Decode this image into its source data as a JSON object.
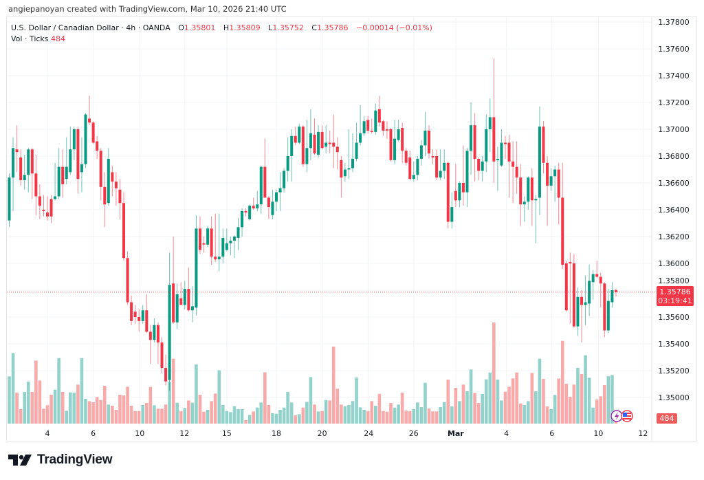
{
  "credit": "angiepanoyan created with TradingView.com, Mar 10, 2026 21:40 UTC",
  "legend": {
    "symbol": "U.S. Dollar / Canadian Dollar · 4h · OANDA",
    "o_label": "O",
    "o_value": "1.35801",
    "h_label": "H",
    "h_value": "1.35809",
    "l_label": "L",
    "l_value": "1.35752",
    "c_label": "C",
    "c_value": "1.35786",
    "change": "−0.00014 (−0.01%)",
    "vol_label": "Vol · Ticks",
    "vol_value": "484"
  },
  "price_badge": {
    "price": "1.35786",
    "countdown": "03:19:41"
  },
  "volume_badge": "484",
  "logo_text": "TradingView",
  "icons": [
    "lightning-icon",
    "us-flag-icon"
  ],
  "colors": {
    "up": "#089981",
    "down": "#f23645",
    "up_vol": "#92d2cb",
    "down_vol": "#f8a9a9",
    "grid": "#f2f3f5"
  },
  "chart_data": {
    "type": "candlestick",
    "title": "U.S. Dollar / Canadian Dollar · 4h · OANDA",
    "ylim": [
      1.3485,
      1.3796
    ],
    "y_ticks": [
      "1.37800",
      "1.37600",
      "1.37400",
      "1.37200",
      "1.37000",
      "1.36800",
      "1.36600",
      "1.36400",
      "1.36200",
      "1.36000",
      "1.35800",
      "1.35600",
      "1.35400",
      "1.35200",
      "1.35000"
    ],
    "time_ticks": [
      {
        "label": "4",
        "index": 10
      },
      {
        "label": "6",
        "index": 22
      },
      {
        "label": "10",
        "index": 34.2
      },
      {
        "label": "12",
        "index": 45.9
      },
      {
        "label": "15",
        "index": 57
      },
      {
        "label": "18",
        "index": 70
      },
      {
        "label": "20",
        "index": 82
      },
      {
        "label": "24",
        "index": 94.2
      },
      {
        "label": "26",
        "index": 106
      },
      {
        "label": "Mar",
        "index": 117,
        "bold": true
      },
      {
        "label": "4",
        "index": 130.3
      },
      {
        "label": "6",
        "index": 142.2
      },
      {
        "label": "10",
        "index": 154.4
      },
      {
        "label": "12",
        "index": 166.1
      }
    ],
    "last_price": 1.35786,
    "ohlc": [
      [
        1.3632,
        1.3667,
        1.3627,
        1.3664
      ],
      [
        1.3664,
        1.3694,
        1.3639,
        1.3686
      ],
      [
        1.3685,
        1.3703,
        1.3668,
        1.3683
      ],
      [
        1.3679,
        1.3685,
        1.3658,
        1.3662
      ],
      [
        1.3662,
        1.3681,
        1.3655,
        1.3666
      ],
      [
        1.3666,
        1.3686,
        1.3653,
        1.3685
      ],
      [
        1.3685,
        1.3686,
        1.3648,
        1.3667
      ],
      [
        1.3667,
        1.3681,
        1.3636,
        1.365
      ],
      [
        1.365,
        1.3659,
        1.3633,
        1.3643
      ],
      [
        1.364,
        1.3651,
        1.3635,
        1.3639
      ],
      [
        1.3638,
        1.365,
        1.3632,
        1.3635
      ],
      [
        1.3648,
        1.3651,
        1.363,
        1.3635
      ],
      [
        1.3648,
        1.3675,
        1.3647,
        1.365
      ],
      [
        1.365,
        1.3686,
        1.3648,
        1.3672
      ],
      [
        1.3672,
        1.3685,
        1.3649,
        1.3659
      ],
      [
        1.3663,
        1.3694,
        1.3659,
        1.3672
      ],
      [
        1.3668,
        1.3702,
        1.3666,
        1.3685
      ],
      [
        1.3685,
        1.3702,
        1.3677,
        1.37
      ],
      [
        1.37,
        1.3702,
        1.3652,
        1.3663
      ],
      [
        1.3668,
        1.3694,
        1.3653,
        1.3674
      ],
      [
        1.3674,
        1.3712,
        1.3671,
        1.3711
      ],
      [
        1.3708,
        1.3725,
        1.3703,
        1.3705
      ],
      [
        1.3705,
        1.3706,
        1.3689,
        1.369
      ],
      [
        1.3691,
        1.3695,
        1.3678,
        1.3684
      ],
      [
        1.3684,
        1.3686,
        1.3647,
        1.3657
      ],
      [
        1.3657,
        1.3668,
        1.3627,
        1.3644
      ],
      [
        1.3645,
        1.3686,
        1.3643,
        1.3678
      ],
      [
        1.3668,
        1.3673,
        1.365,
        1.3661
      ],
      [
        1.3661,
        1.3668,
        1.3643,
        1.3656
      ],
      [
        1.3655,
        1.3663,
        1.3633,
        1.3645
      ],
      [
        1.3645,
        1.3653,
        1.3602,
        1.3604
      ],
      [
        1.3604,
        1.3609,
        1.3569,
        1.3571
      ],
      [
        1.3571,
        1.3576,
        1.3554,
        1.3557
      ],
      [
        1.3564,
        1.3569,
        1.3555,
        1.356
      ],
      [
        1.356,
        1.3566,
        1.3549,
        1.3557
      ],
      [
        1.3557,
        1.3569,
        1.3555,
        1.3565
      ],
      [
        1.3565,
        1.3577,
        1.3548,
        1.3549
      ],
      [
        1.3549,
        1.3554,
        1.3525,
        1.3543
      ],
      [
        1.3543,
        1.3559,
        1.3541,
        1.3554
      ],
      [
        1.3554,
        1.3556,
        1.3525,
        1.3541
      ],
      [
        1.3541,
        1.3545,
        1.3518,
        1.3522
      ],
      [
        1.3522,
        1.3532,
        1.3509,
        1.3512
      ],
      [
        1.3513,
        1.3608,
        1.3505,
        1.3584
      ],
      [
        1.3585,
        1.362,
        1.3555,
        1.3556
      ],
      [
        1.3556,
        1.3585,
        1.3551,
        1.3577
      ],
      [
        1.3574,
        1.3586,
        1.3569,
        1.3569
      ],
      [
        1.3569,
        1.3587,
        1.3566,
        1.3581
      ],
      [
        1.3581,
        1.3597,
        1.3564,
        1.3565
      ],
      [
        1.3565,
        1.3583,
        1.3556,
        1.3568
      ],
      [
        1.3567,
        1.3636,
        1.3561,
        1.3626
      ],
      [
        1.3626,
        1.3635,
        1.3607,
        1.361
      ],
      [
        1.3615,
        1.362,
        1.3608,
        1.3614
      ],
      [
        1.3614,
        1.3628,
        1.3612,
        1.3626
      ],
      [
        1.3626,
        1.3635,
        1.3599,
        1.3605
      ],
      [
        1.3605,
        1.3637,
        1.3601,
        1.3603
      ],
      [
        1.3603,
        1.3637,
        1.3594,
        1.3605
      ],
      [
        1.3605,
        1.3626,
        1.36,
        1.3619
      ],
      [
        1.361,
        1.3626,
        1.3609,
        1.3615
      ],
      [
        1.3615,
        1.362,
        1.3606,
        1.3617
      ],
      [
        1.3617,
        1.3621,
        1.3604,
        1.362
      ],
      [
        1.3619,
        1.3634,
        1.361,
        1.3627
      ],
      [
        1.3627,
        1.3641,
        1.362,
        1.3639
      ],
      [
        1.3639,
        1.3641,
        1.3635,
        1.3638
      ],
      [
        1.3633,
        1.3644,
        1.3632,
        1.3643
      ],
      [
        1.3643,
        1.3649,
        1.364,
        1.3641
      ],
      [
        1.3641,
        1.3654,
        1.3639,
        1.3644
      ],
      [
        1.3644,
        1.3673,
        1.3637,
        1.3672
      ],
      [
        1.3672,
        1.3693,
        1.3649,
        1.3649
      ],
      [
        1.3649,
        1.365,
        1.3633,
        1.3642
      ],
      [
        1.3636,
        1.3655,
        1.3633,
        1.3646
      ],
      [
        1.3646,
        1.3655,
        1.3639,
        1.3653
      ],
      [
        1.3653,
        1.3668,
        1.3639,
        1.3656
      ],
      [
        1.3656,
        1.3671,
        1.3653,
        1.3669
      ],
      [
        1.3669,
        1.3694,
        1.3661,
        1.368
      ],
      [
        1.368,
        1.37,
        1.3661,
        1.3695
      ],
      [
        1.3695,
        1.3702,
        1.3688,
        1.369
      ],
      [
        1.369,
        1.3704,
        1.3689,
        1.3702
      ],
      [
        1.3702,
        1.3703,
        1.3672,
        1.3674
      ],
      [
        1.3674,
        1.3707,
        1.3668,
        1.3686
      ],
      [
        1.3686,
        1.3715,
        1.3677,
        1.3697
      ],
      [
        1.3696,
        1.3708,
        1.3681,
        1.3682
      ],
      [
        1.3681,
        1.3703,
        1.3679,
        1.3698
      ],
      [
        1.3698,
        1.3703,
        1.3685,
        1.3686
      ],
      [
        1.3687,
        1.3703,
        1.3682,
        1.369
      ],
      [
        1.369,
        1.3699,
        1.3682,
        1.3689
      ],
      [
        1.369,
        1.3711,
        1.3671,
        1.3687
      ],
      [
        1.3687,
        1.3694,
        1.367,
        1.3683
      ],
      [
        1.3677,
        1.368,
        1.3649,
        1.3664
      ],
      [
        1.3665,
        1.3675,
        1.3661,
        1.367
      ],
      [
        1.367,
        1.37,
        1.3663,
        1.3671
      ],
      [
        1.3671,
        1.3697,
        1.3668,
        1.3678
      ],
      [
        1.3678,
        1.3705,
        1.3676,
        1.369
      ],
      [
        1.369,
        1.3718,
        1.3688,
        1.3697
      ],
      [
        1.3697,
        1.371,
        1.3695,
        1.3706
      ],
      [
        1.3707,
        1.371,
        1.3697,
        1.3699
      ],
      [
        1.3699,
        1.3708,
        1.3697,
        1.3698
      ],
      [
        1.3698,
        1.3719,
        1.3696,
        1.3714
      ],
      [
        1.3715,
        1.3725,
        1.3702,
        1.3705
      ],
      [
        1.3706,
        1.3707,
        1.3695,
        1.3699
      ],
      [
        1.37,
        1.3706,
        1.3693,
        1.3699
      ],
      [
        1.37,
        1.3701,
        1.3676,
        1.3677
      ],
      [
        1.3677,
        1.3707,
        1.3674,
        1.3693
      ],
      [
        1.3692,
        1.3707,
        1.3691,
        1.37
      ],
      [
        1.3701,
        1.3705,
        1.3675,
        1.3684
      ],
      [
        1.3684,
        1.3686,
        1.3673,
        1.3675
      ],
      [
        1.3679,
        1.3684,
        1.3662,
        1.3663
      ],
      [
        1.3663,
        1.3676,
        1.3661,
        1.3666
      ],
      [
        1.3666,
        1.368,
        1.3662,
        1.3678
      ],
      [
        1.3678,
        1.3692,
        1.3673,
        1.3688
      ],
      [
        1.3688,
        1.3713,
        1.368,
        1.3699
      ],
      [
        1.3699,
        1.3703,
        1.3678,
        1.3682
      ],
      [
        1.368,
        1.3685,
        1.3674,
        1.3679
      ],
      [
        1.368,
        1.3685,
        1.3662,
        1.3664
      ],
      [
        1.3664,
        1.3685,
        1.3662,
        1.3669
      ],
      [
        1.3669,
        1.3685,
        1.3663,
        1.3675
      ],
      [
        1.3675,
        1.3676,
        1.3626,
        1.3631
      ],
      [
        1.3631,
        1.3653,
        1.3626,
        1.3642
      ],
      [
        1.3654,
        1.3674,
        1.3642,
        1.3647
      ],
      [
        1.3647,
        1.3661,
        1.3642,
        1.366
      ],
      [
        1.366,
        1.3688,
        1.3643,
        1.3653
      ],
      [
        1.3653,
        1.3686,
        1.3642,
        1.3684
      ],
      [
        1.3684,
        1.372,
        1.3666,
        1.3703
      ],
      [
        1.3703,
        1.3712,
        1.3661,
        1.3678
      ],
      [
        1.3678,
        1.3679,
        1.3662,
        1.3669
      ],
      [
        1.3669,
        1.368,
        1.3661,
        1.3676
      ],
      [
        1.3676,
        1.3711,
        1.3668,
        1.37
      ],
      [
        1.37,
        1.3723,
        1.3683,
        1.3709
      ],
      [
        1.3709,
        1.3753,
        1.366,
        1.3676
      ],
      [
        1.3677,
        1.3687,
        1.3654,
        1.3678
      ],
      [
        1.3673,
        1.37,
        1.3672,
        1.369
      ],
      [
        1.369,
        1.3695,
        1.3678,
        1.3689
      ],
      [
        1.369,
        1.3696,
        1.3649,
        1.3676
      ],
      [
        1.3676,
        1.3691,
        1.3645,
        1.3672
      ],
      [
        1.3672,
        1.3691,
        1.3652,
        1.3664
      ],
      [
        1.3664,
        1.3674,
        1.3628,
        1.3644
      ],
      [
        1.3644,
        1.365,
        1.3631,
        1.3646
      ],
      [
        1.3646,
        1.3665,
        1.364,
        1.3664
      ],
      [
        1.3664,
        1.3671,
        1.3628,
        1.3647
      ],
      [
        1.3647,
        1.3651,
        1.3615,
        1.3648
      ],
      [
        1.3649,
        1.3717,
        1.3636,
        1.3702
      ],
      [
        1.3702,
        1.3706,
        1.3667,
        1.3675
      ],
      [
        1.3675,
        1.368,
        1.3628,
        1.3658
      ],
      [
        1.3658,
        1.3671,
        1.3654,
        1.3665
      ],
      [
        1.3665,
        1.3673,
        1.3646,
        1.367
      ],
      [
        1.367,
        1.3675,
        1.3629,
        1.3649
      ],
      [
        1.3649,
        1.3675,
        1.3596,
        1.3599
      ],
      [
        1.36,
        1.3602,
        1.3564,
        1.3565
      ],
      [
        1.3601,
        1.3608,
        1.3555,
        1.36
      ],
      [
        1.36,
        1.3607,
        1.3552,
        1.3553
      ],
      [
        1.3553,
        1.3582,
        1.3546,
        1.3575
      ],
      [
        1.3575,
        1.358,
        1.3541,
        1.3569
      ],
      [
        1.3569,
        1.3591,
        1.3554,
        1.3571
      ],
      [
        1.357,
        1.3599,
        1.3561,
        1.3587
      ],
      [
        1.3586,
        1.3595,
        1.3573,
        1.3592
      ],
      [
        1.3592,
        1.3602,
        1.3589,
        1.359
      ],
      [
        1.359,
        1.3593,
        1.3567,
        1.3585
      ],
      [
        1.3585,
        1.3586,
        1.3545,
        1.355
      ],
      [
        1.355,
        1.3581,
        1.3548,
        1.3572
      ],
      [
        1.3571,
        1.3586,
        1.3567,
        1.358
      ],
      [
        1.35801,
        1.35809,
        1.35752,
        1.35786
      ]
    ],
    "volume": [
      4120,
      6160,
      2700,
      1260,
      2760,
      3660,
      2760,
      5500,
      3760,
      1300,
      1600,
      2520,
      2960,
      5720,
      2760,
      1120,
      2720,
      2700,
      3400,
      5720,
      2160,
      1960,
      1860,
      2320,
      2060,
      3300,
      1660,
      1560,
      1200,
      2520,
      2460,
      3220,
      1560,
      1100,
      1100,
      1620,
      1800,
      3200,
      1600,
      1300,
      1300,
      1660,
      3660,
      5660,
      1820,
      1100,
      1360,
      2020,
      1820,
      5160,
      2520,
      1040,
      1200,
      1960,
      2620,
      4660,
      1620,
      1100,
      1000,
      1520,
      1260,
      1260,
      300,
      760,
      1060,
      1400,
      1840,
      4480,
      1620,
      900,
      860,
      1200,
      1400,
      2760,
      1840,
      720,
      820,
      1400,
      1900,
      4060,
      1660,
      1060,
      1100,
      2060,
      2020,
      6720,
      3040,
      1660,
      1520,
      1620,
      1960,
      4020,
      1420,
      1200,
      1100,
      1960,
      1560,
      2600,
      1100,
      1040,
      1800,
      1400,
      1660,
      2700,
      1140,
      1100,
      1260,
      1840,
      1440,
      3560,
      1320,
      1060,
      1060,
      1440,
      1880,
      3840,
      1500,
      3120,
      1960,
      3400,
      2820,
      4720,
      2680,
      1800,
      2580,
      3860,
      4460,
      8820,
      3840,
      2020,
      2780,
      3220,
      3940,
      4460,
      1760,
      1620,
      1960,
      4420,
      2820,
      5660,
      3900,
      1500,
      1260,
      2500,
      3940,
      7220,
      3480,
      2340,
      3400,
      4860,
      4320,
      5960,
      4000,
      1400,
      2100,
      2380,
      3360,
      4140,
      4240,
      484
    ]
  }
}
